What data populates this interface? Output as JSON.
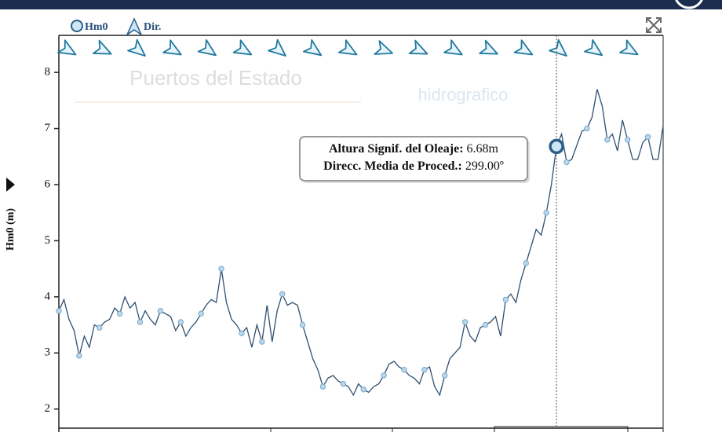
{
  "chart_data": {
    "type": "line",
    "y_label": "Hm0 (m)",
    "legend": [
      "Hm0",
      "Dir."
    ],
    "watermarks": [
      "Puertos del Estado",
      "hidrografico"
    ],
    "color": "#2f4f6f",
    "marker_color": "#b8d8ee",
    "arrow_color": "#1f7a9e",
    "ylim": [
      1.66,
      8.66
    ],
    "yticks": [
      2,
      3,
      4,
      5,
      6,
      7,
      8
    ],
    "values": [
      3.75,
      3.95,
      3.6,
      3.4,
      2.95,
      3.3,
      3.1,
      3.5,
      3.45,
      3.55,
      3.6,
      3.8,
      3.7,
      4.0,
      3.8,
      3.9,
      3.55,
      3.75,
      3.6,
      3.5,
      3.75,
      3.7,
      3.65,
      3.4,
      3.55,
      3.3,
      3.45,
      3.55,
      3.7,
      3.85,
      3.95,
      3.9,
      4.5,
      3.9,
      3.6,
      3.5,
      3.35,
      3.45,
      3.1,
      3.5,
      3.2,
      3.85,
      3.2,
      3.75,
      4.05,
      3.85,
      3.9,
      3.85,
      3.5,
      3.2,
      2.9,
      2.7,
      2.4,
      2.55,
      2.6,
      2.5,
      2.45,
      2.4,
      2.25,
      2.45,
      2.35,
      2.3,
      2.4,
      2.45,
      2.6,
      2.8,
      2.85,
      2.75,
      2.7,
      2.6,
      2.55,
      2.45,
      2.7,
      2.75,
      2.4,
      2.25,
      2.6,
      2.9,
      3.0,
      3.1,
      3.55,
      3.3,
      3.2,
      3.45,
      3.5,
      3.55,
      3.65,
      3.3,
      3.95,
      4.05,
      3.9,
      4.3,
      4.6,
      4.9,
      5.2,
      5.1,
      5.5,
      6.0,
      6.68,
      6.9,
      6.4,
      6.45,
      6.7,
      6.95,
      7.0,
      7.2,
      7.7,
      7.4,
      6.8,
      6.9,
      6.6,
      7.15,
      6.8,
      6.45,
      6.45,
      6.75,
      6.85,
      6.45,
      6.45,
      7.05
    ],
    "directions": [
      300,
      295,
      310,
      300,
      305,
      300,
      310,
      305,
      300,
      290,
      295,
      300,
      295,
      300,
      310,
      305,
      299
    ],
    "tooltip": {
      "height_label": "Altura Signif. del Oleaje:",
      "height_value": "6.68m",
      "direction_label": "Direcc. Media de Proced.:",
      "direction_value": "299.00º"
    }
  }
}
